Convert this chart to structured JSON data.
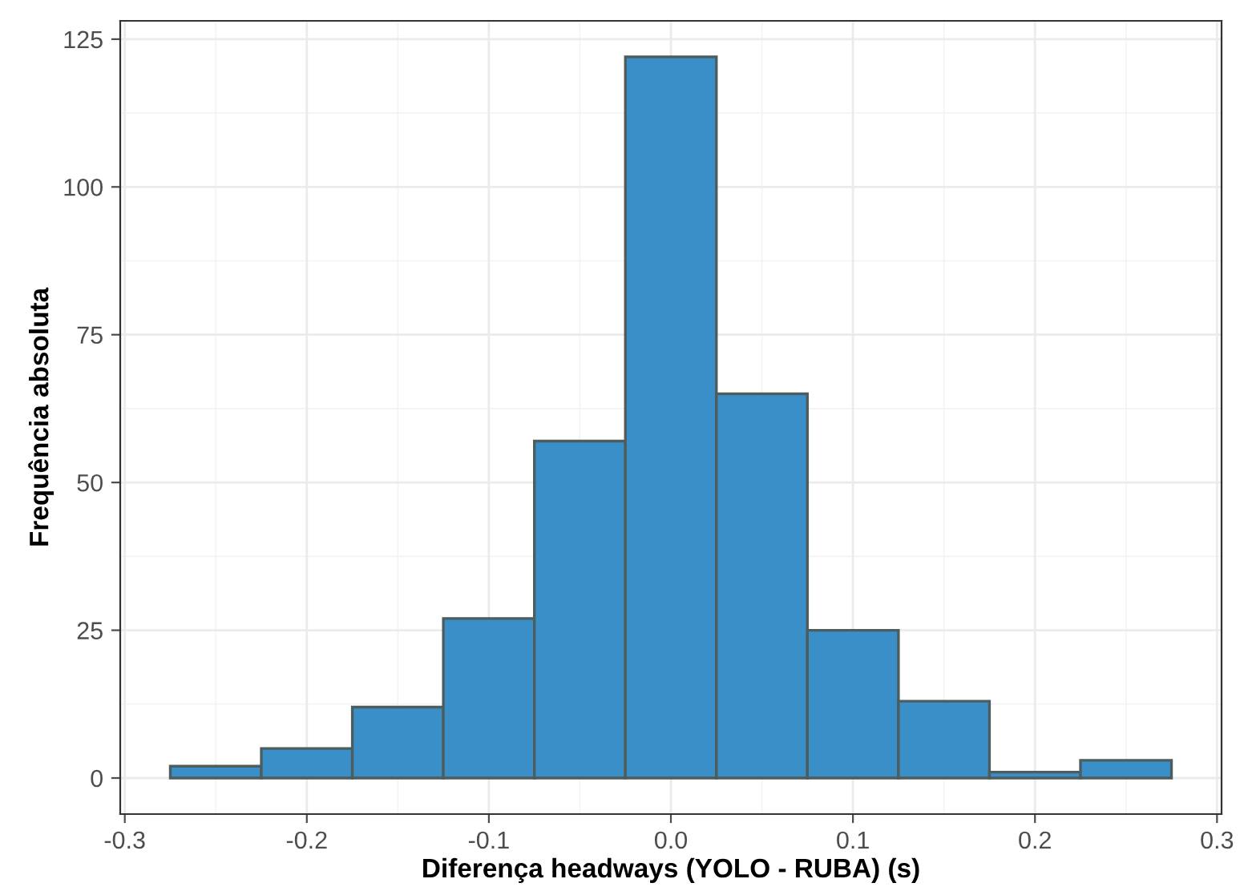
{
  "chart_data": {
    "type": "histogram",
    "xlabel": "Diferença headways (YOLO - RUBA) (s)",
    "ylabel": "Frequência absoluta",
    "bins": [
      -0.275,
      -0.225,
      -0.175,
      -0.125,
      -0.075,
      -0.025,
      0.025,
      0.075,
      0.125,
      0.175,
      0.225,
      0.275
    ],
    "values": [
      2,
      5,
      12,
      27,
      57,
      122,
      65,
      25,
      13,
      1,
      3
    ],
    "color": "#3a8fc9",
    "xlim": [
      -0.3025,
      0.3025
    ],
    "xticks": [
      -0.3,
      -0.2,
      -0.1,
      {
        "value": 0,
        "label": "0.0"
      },
      0.1,
      0.2,
      0.3
    ],
    "ylim": [
      -6.1,
      128.1
    ],
    "yticks": [
      0,
      25,
      50,
      75,
      100,
      125
    ],
    "grid": true
  }
}
